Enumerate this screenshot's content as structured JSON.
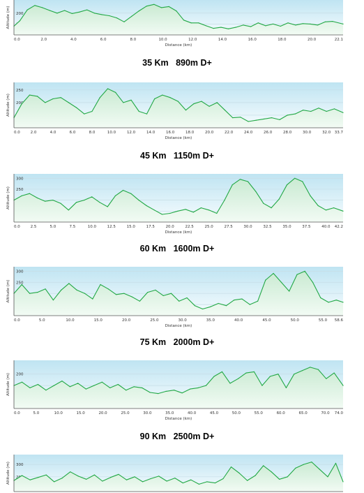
{
  "colors": {
    "line": "#22a845",
    "fill_top": "#c9ead2",
    "fill_bottom": "#f2fbf4",
    "plot_bg_top": "#bfe4f2",
    "plot_bg_bottom": "#f6fcfe",
    "grid": "#c6dde6",
    "axis": "#555555"
  },
  "chart_data": [
    {
      "type": "area",
      "title": "",
      "xlabel": "Distance (km)",
      "ylabel": "Altitude (m)",
      "xlim": [
        0,
        22.1
      ],
      "ylim": [
        100,
        260
      ],
      "x_ticks": [
        "0.0",
        "2.0",
        "4.0",
        "6.0",
        "8.0",
        "10.0",
        "12.0",
        "14.0",
        "16.0",
        "18.0",
        "20.0",
        "22.1"
      ],
      "y_ticks": [
        150,
        200
      ],
      "grid": true,
      "x": [
        0,
        0.4,
        0.9,
        1.4,
        1.9,
        2.4,
        2.9,
        3.4,
        3.9,
        4.4,
        4.9,
        5.4,
        5.9,
        6.4,
        6.9,
        7.4,
        7.9,
        8.4,
        8.9,
        9.4,
        9.9,
        10.4,
        10.9,
        11.4,
        11.9,
        12.4,
        12.9,
        13.4,
        13.9,
        14.4,
        14.9,
        15.4,
        15.9,
        16.4,
        16.9,
        17.4,
        17.9,
        18.4,
        18.9,
        19.4,
        19.9,
        20.4,
        20.9,
        21.4,
        22.1
      ],
      "y": [
        140,
        165,
        215,
        235,
        225,
        212,
        200,
        212,
        198,
        205,
        215,
        200,
        193,
        188,
        178,
        160,
        185,
        210,
        232,
        240,
        225,
        230,
        210,
        168,
        155,
        155,
        142,
        130,
        135,
        128,
        135,
        145,
        138,
        155,
        142,
        150,
        140,
        155,
        145,
        152,
        150,
        145,
        160,
        162,
        150
      ]
    },
    {
      "type": "area",
      "title": "35 Km   890m D+",
      "xlabel": "Distance (km)",
      "ylabel": "Altitude (m)",
      "xlim": [
        0,
        33.7
      ],
      "ylim": [
        100,
        280
      ],
      "x_ticks": [
        "0.0",
        "2.0",
        "4.0",
        "6.0",
        "8.0",
        "10.0",
        "12.0",
        "14.0",
        "16.0",
        "18.0",
        "20.0",
        "22.0",
        "24.0",
        "26.0",
        "28.0",
        "30.0",
        "32.0",
        "33.7"
      ],
      "y_ticks": [
        150,
        200,
        250
      ],
      "grid": true,
      "x": [
        0,
        0.8,
        1.6,
        2.4,
        3.2,
        4.0,
        4.8,
        5.6,
        6.4,
        7.2,
        8.0,
        8.8,
        9.6,
        10.4,
        11.2,
        12.0,
        12.8,
        13.6,
        14.4,
        15.2,
        16.0,
        16.8,
        17.6,
        18.4,
        19.2,
        20.0,
        20.8,
        21.6,
        22.4,
        23.2,
        24.0,
        24.8,
        25.6,
        26.4,
        27.2,
        28.0,
        28.8,
        29.6,
        30.4,
        31.2,
        32.0,
        32.8,
        33.7
      ],
      "y": [
        140,
        195,
        230,
        225,
        200,
        215,
        220,
        200,
        180,
        155,
        165,
        220,
        255,
        240,
        200,
        210,
        165,
        155,
        215,
        230,
        220,
        205,
        170,
        195,
        205,
        185,
        200,
        170,
        140,
        142,
        125,
        130,
        135,
        140,
        132,
        150,
        155,
        170,
        165,
        178,
        165,
        175,
        160
      ]
    },
    {
      "type": "area",
      "title": "45 Km   1150m D+",
      "xlabel": "Distance (km)",
      "ylabel": "Altitude (m)",
      "xlim": [
        0,
        42.2
      ],
      "ylim": [
        100,
        320
      ],
      "x_ticks": [
        "0.0",
        "2.5",
        "5.0",
        "7.5",
        "10.0",
        "12.5",
        "15.0",
        "17.5",
        "20.0",
        "22.5",
        "25.0",
        "27.5",
        "30.0",
        "32.5",
        "35.0",
        "37.5",
        "40.0",
        "42.2"
      ],
      "y_ticks": [
        150,
        200,
        250,
        300
      ],
      "grid": true,
      "x": [
        0,
        1,
        2,
        3,
        4,
        5,
        6,
        7,
        8,
        9,
        10,
        11,
        12,
        13,
        14,
        15,
        16,
        17,
        18,
        19,
        20,
        21,
        22,
        23,
        24,
        25,
        26,
        27,
        28,
        29,
        30,
        31,
        32,
        33,
        34,
        35,
        36,
        37,
        38,
        39,
        40,
        41,
        42.2
      ],
      "y": [
        200,
        220,
        230,
        210,
        195,
        200,
        185,
        155,
        190,
        200,
        215,
        190,
        170,
        220,
        245,
        230,
        200,
        175,
        155,
        135,
        140,
        150,
        158,
        145,
        165,
        155,
        140,
        200,
        270,
        295,
        285,
        240,
        185,
        165,
        205,
        270,
        300,
        285,
        220,
        175,
        155,
        165,
        150
      ]
    },
    {
      "type": "area",
      "title": "60 Km   1600m D+",
      "xlabel": "Distance (km)",
      "ylabel": "Altitude (m)",
      "xlim": [
        0,
        58.6
      ],
      "ylim": [
        100,
        320
      ],
      "x_ticks": [
        "0.0",
        "5.0",
        "10.0",
        "15.0",
        "20.0",
        "25.0",
        "30.0",
        "35.0",
        "40.0",
        "45.0",
        "50.0",
        "55.0",
        "58.6"
      ],
      "y_ticks": [
        150,
        200,
        250,
        300
      ],
      "grid": true,
      "x": [
        0,
        1.4,
        2.8,
        4.2,
        5.6,
        7.0,
        8.4,
        9.8,
        11.2,
        12.6,
        14.0,
        15.4,
        16.8,
        18.2,
        19.6,
        21.0,
        22.4,
        23.8,
        25.2,
        26.6,
        28.0,
        29.4,
        30.8,
        32.2,
        33.6,
        35.0,
        36.4,
        37.8,
        39.2,
        40.6,
        42.0,
        43.4,
        44.8,
        46.2,
        47.6,
        49.0,
        50.4,
        51.8,
        53.2,
        54.6,
        56.0,
        57.4,
        58.6
      ],
      "y": [
        200,
        240,
        200,
        205,
        220,
        170,
        215,
        245,
        215,
        200,
        175,
        240,
        220,
        195,
        200,
        185,
        165,
        205,
        215,
        190,
        200,
        165,
        180,
        145,
        130,
        140,
        155,
        145,
        170,
        175,
        150,
        165,
        260,
        290,
        250,
        210,
        285,
        300,
        250,
        180,
        160,
        170,
        160
      ]
    },
    {
      "type": "area",
      "title": "75 Km   2000m D+",
      "xlabel": "Distance (km)",
      "ylabel": "Altitude (m)",
      "xlim": [
        0,
        74
      ],
      "ylim": [
        50,
        260
      ],
      "x_ticks": [
        "0.0",
        "5.0",
        "10.0",
        "15.0",
        "20.0",
        "25.0",
        "30.0",
        "35.0",
        "40.0",
        "45.0",
        "50.0",
        "55.0",
        "60.0",
        "65.0",
        "70.0",
        "74.0"
      ],
      "y_ticks": [
        100,
        150,
        200
      ],
      "grid": true,
      "x": [
        0,
        1.8,
        3.6,
        5.4,
        7.2,
        9.0,
        10.8,
        12.6,
        14.4,
        16.2,
        18.0,
        19.8,
        21.6,
        23.4,
        25.2,
        27.0,
        28.8,
        30.6,
        32.4,
        34.2,
        36.0,
        37.8,
        39.6,
        41.4,
        43.2,
        45.0,
        46.8,
        48.6,
        50.4,
        52.2,
        54.0,
        55.8,
        57.6,
        59.4,
        61.2,
        63.0,
        64.8,
        66.6,
        68.4,
        70.2,
        72.0,
        74.0
      ],
      "y": [
        150,
        165,
        140,
        155,
        130,
        150,
        170,
        145,
        160,
        135,
        150,
        165,
        140,
        155,
        130,
        145,
        140,
        120,
        115,
        125,
        130,
        118,
        135,
        140,
        150,
        190,
        210,
        160,
        180,
        205,
        210,
        150,
        190,
        200,
        140,
        200,
        215,
        230,
        220,
        180,
        205,
        150
      ]
    },
    {
      "type": "area",
      "title": "90 Km   2500m D+",
      "xlabel": "",
      "ylabel": "Altitude (m)",
      "xlim": [
        0,
        90
      ],
      "ylim": [
        80,
        380
      ],
      "x_ticks": [],
      "y_ticks": [
        100,
        200,
        300
      ],
      "grid": true,
      "x": [
        0,
        2.2,
        4.4,
        6.6,
        8.8,
        11.0,
        13.2,
        15.4,
        17.6,
        19.8,
        22.0,
        24.2,
        26.4,
        28.6,
        30.8,
        33.0,
        35.2,
        37.4,
        39.6,
        41.8,
        44.0,
        46.2,
        48.4,
        50.6,
        52.8,
        55.0,
        57.2,
        59.4,
        61.6,
        63.8,
        66.0,
        68.2,
        70.4,
        72.6,
        74.8,
        77.0,
        79.2,
        81.4,
        83.6,
        85.8,
        88.0,
        90.0
      ],
      "y": [
        170,
        210,
        175,
        195,
        215,
        160,
        190,
        240,
        205,
        180,
        215,
        165,
        195,
        220,
        175,
        200,
        160,
        185,
        205,
        165,
        190,
        150,
        175,
        140,
        160,
        150,
        185,
        280,
        230,
        170,
        210,
        290,
        240,
        180,
        200,
        270,
        300,
        320,
        260,
        200,
        310,
        160
      ]
    }
  ],
  "panels": [
    {
      "caption": ""
    },
    {
      "caption": "35 Km   890m D+"
    },
    {
      "caption": "45 Km   1150m D+"
    },
    {
      "caption": "60 Km   1600m D+"
    },
    {
      "caption": "75 Km   2000m D+"
    },
    {
      "caption": "90 Km   2500m D+"
    }
  ]
}
